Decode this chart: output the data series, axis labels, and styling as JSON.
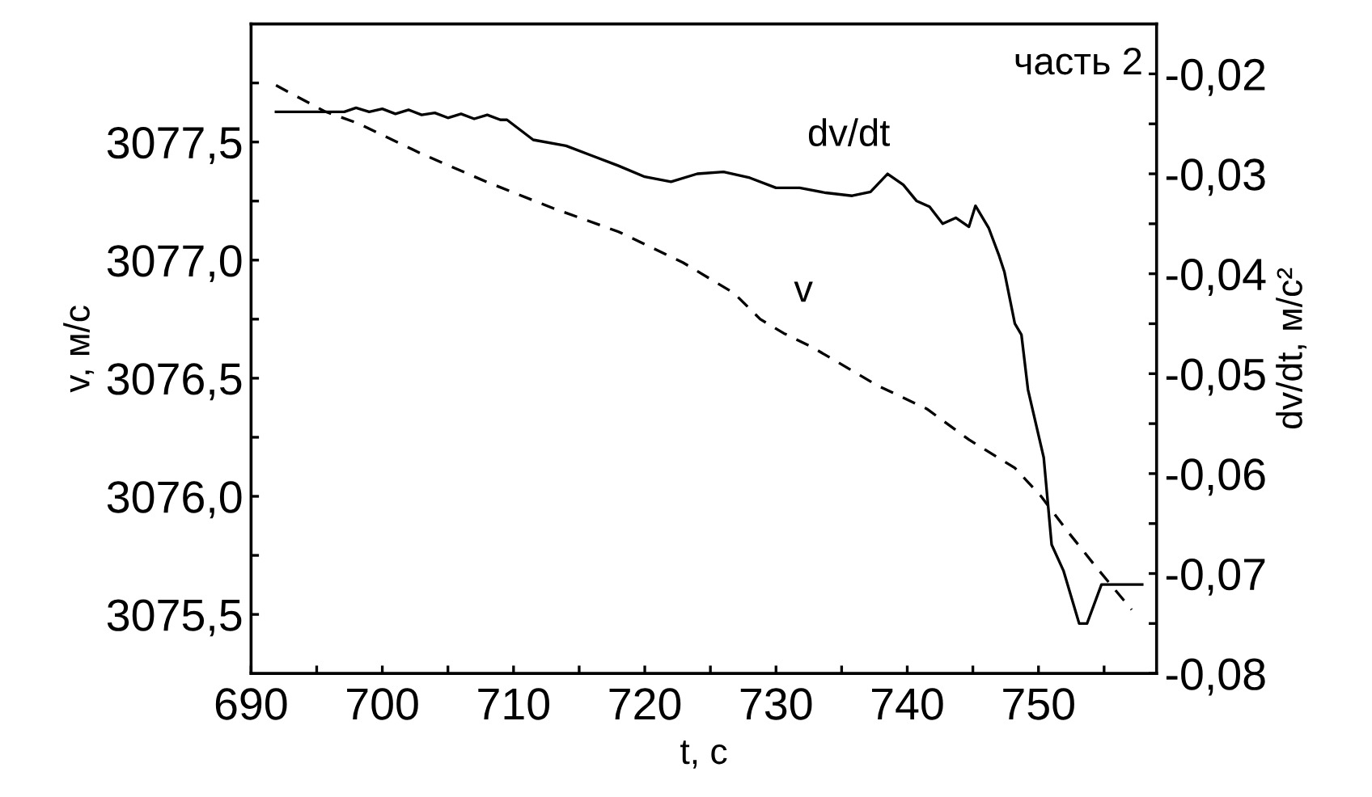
{
  "chart_data": {
    "type": "line",
    "xlabel": "t, с",
    "ylabel": "v, м/с",
    "y2label": "dv/dt, м/с²",
    "xlim": [
      690,
      759
    ],
    "xticks": [
      690,
      {
        "value": 695,
        "label": null
      },
      700,
      {
        "value": 705,
        "label": null
      },
      710,
      {
        "value": 715,
        "label": null
      },
      720,
      {
        "value": 725,
        "label": null
      },
      730,
      {
        "value": 735,
        "label": null
      },
      740,
      {
        "value": 745,
        "label": null
      },
      750,
      {
        "value": 755,
        "label": null
      }
    ],
    "ylim": [
      3075.25,
      3078.0
    ],
    "yticks": [
      {
        "value": 3075.5,
        "label": "3075,5"
      },
      {
        "value": 3075.75,
        "label": null
      },
      {
        "value": 3076.0,
        "label": "3076,0"
      },
      {
        "value": 3076.25,
        "label": null
      },
      {
        "value": 3076.5,
        "label": "3076,5"
      },
      {
        "value": 3076.75,
        "label": null
      },
      {
        "value": 3077.0,
        "label": "3077,0"
      },
      {
        "value": 3077.25,
        "label": null
      },
      {
        "value": 3077.5,
        "label": "3077,5"
      },
      {
        "value": 3077.75,
        "label": null
      }
    ],
    "y2lim": [
      -0.08,
      -0.015
    ],
    "y2ticks": [
      {
        "value": -0.08,
        "label": "-0,08"
      },
      {
        "value": -0.075,
        "label": null
      },
      {
        "value": -0.07,
        "label": "-0,07"
      },
      {
        "value": -0.065,
        "label": null
      },
      {
        "value": -0.06,
        "label": "-0,06"
      },
      {
        "value": -0.055,
        "label": null
      },
      {
        "value": -0.05,
        "label": "-0,05"
      },
      {
        "value": -0.045,
        "label": null
      },
      {
        "value": -0.04,
        "label": "-0,04"
      },
      {
        "value": -0.035,
        "label": null
      },
      {
        "value": -0.03,
        "label": "-0,03"
      },
      {
        "value": -0.025,
        "label": null
      },
      {
        "value": -0.02,
        "label": "-0,02"
      }
    ],
    "grid": false,
    "legend": false,
    "series": [
      {
        "color": "#000000",
        "line_style": "dashed",
        "x": [
          691.9,
          695.6,
          698.1,
          703,
          708,
          713,
          718,
          722.9,
          726.8,
          728.8,
          730.6,
          732.8,
          737.7,
          741.5,
          744.7,
          748.2,
          750.2,
          752.1,
          754.4,
          757.1
        ],
        "values": [
          3077.74,
          3077.63,
          3077.58,
          3077.45,
          3077.33,
          3077.22,
          3077.12,
          3076.99,
          3076.86,
          3076.75,
          3076.69,
          3076.63,
          3076.47,
          3076.37,
          3076.24,
          3076.12,
          3076.0,
          3075.86,
          3075.7,
          3075.52
        ]
      },
      {
        "color": "#000000",
        "line_style": "solid",
        "axis": "y2",
        "x": [
          691.9,
          697.1,
          698,
          699,
          700,
          701,
          702,
          703,
          704,
          705,
          706,
          707,
          708,
          709,
          709.5,
          711.5,
          714,
          716,
          718,
          720,
          722,
          724,
          726,
          728,
          730,
          731.8,
          733.8,
          735.8,
          737.2,
          738.5,
          739.7,
          740.7,
          741.7,
          742.7,
          743.7,
          744.7,
          745.2,
          746.2,
          747,
          747.4,
          748.2,
          748.7,
          749.2,
          750.4,
          751,
          751.9,
          753.1,
          753.7,
          754.8,
          757.9
        ],
        "values": [
          -0.0238,
          -0.0238,
          -0.0234,
          -0.0238,
          -0.0235,
          -0.024,
          -0.0236,
          -0.0241,
          -0.0239,
          -0.0244,
          -0.024,
          -0.0245,
          -0.0241,
          -0.0246,
          -0.0246,
          -0.0266,
          -0.0272,
          -0.0282,
          -0.0292,
          -0.0303,
          -0.0308,
          -0.03,
          -0.0298,
          -0.0304,
          -0.0314,
          -0.0314,
          -0.0319,
          -0.0322,
          -0.0318,
          -0.03,
          -0.0311,
          -0.0327,
          -0.0333,
          -0.035,
          -0.0344,
          -0.0353,
          -0.0332,
          -0.0354,
          -0.0382,
          -0.0398,
          -0.045,
          -0.0461,
          -0.0516,
          -0.0584,
          -0.0671,
          -0.0697,
          -0.075,
          -0.075,
          -0.0711,
          -0.0711
        ]
      }
    ],
    "annotations": [
      "часть 2",
      "dv/dt",
      "v"
    ]
  }
}
